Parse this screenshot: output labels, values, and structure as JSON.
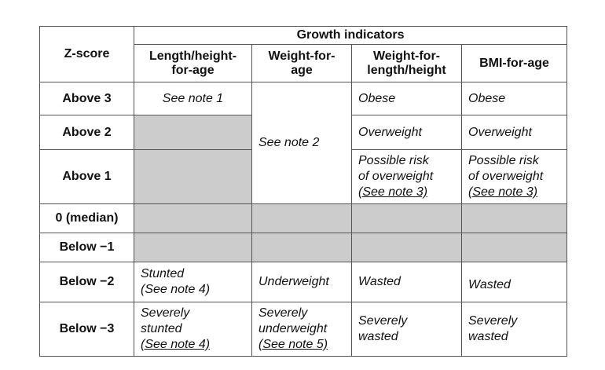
{
  "header": {
    "zscore": "Z-score",
    "group": "Growth indicators",
    "columns": [
      {
        "line1": "Length/height-",
        "line2": "for-age"
      },
      {
        "line1": "Weight-for-",
        "line2": "age"
      },
      {
        "line1": "Weight-for-",
        "line2": "length/height"
      },
      {
        "line1": "BMI-for-age"
      }
    ]
  },
  "rows": [
    {
      "label": "Above 3"
    },
    {
      "label": "Above 2"
    },
    {
      "label": "Above 1"
    },
    {
      "label": "0 (median)"
    },
    {
      "label": "Below −1"
    },
    {
      "label": "Below −2"
    },
    {
      "label": "Below −3"
    }
  ],
  "cells": {
    "above3_lh": "See note 1",
    "weight_note": "See note 2",
    "above3_wlh": "Obese",
    "above3_bmi": "Obese",
    "above2_wlh": "Overweight",
    "above2_bmi": "Overweight",
    "above1_wlh": [
      "Possible risk",
      "of overweight",
      "(See note 3)"
    ],
    "above1_bmi": [
      "Possible risk",
      "of overweight",
      "(See note 3)"
    ],
    "below2_lh": [
      "Stunted",
      "(See note 4)"
    ],
    "below2_w": "Underweight",
    "below2_wlh": "Wasted",
    "below2_bmi": "Wasted",
    "below3_lh": [
      "Severely",
      "stunted",
      "(See note 4)"
    ],
    "below3_w": [
      "Severely",
      "underweight",
      "(See note 5)"
    ],
    "below3_wlh": [
      "Severely",
      "wasted"
    ],
    "below3_bmi": [
      "Severely",
      "wasted"
    ]
  }
}
